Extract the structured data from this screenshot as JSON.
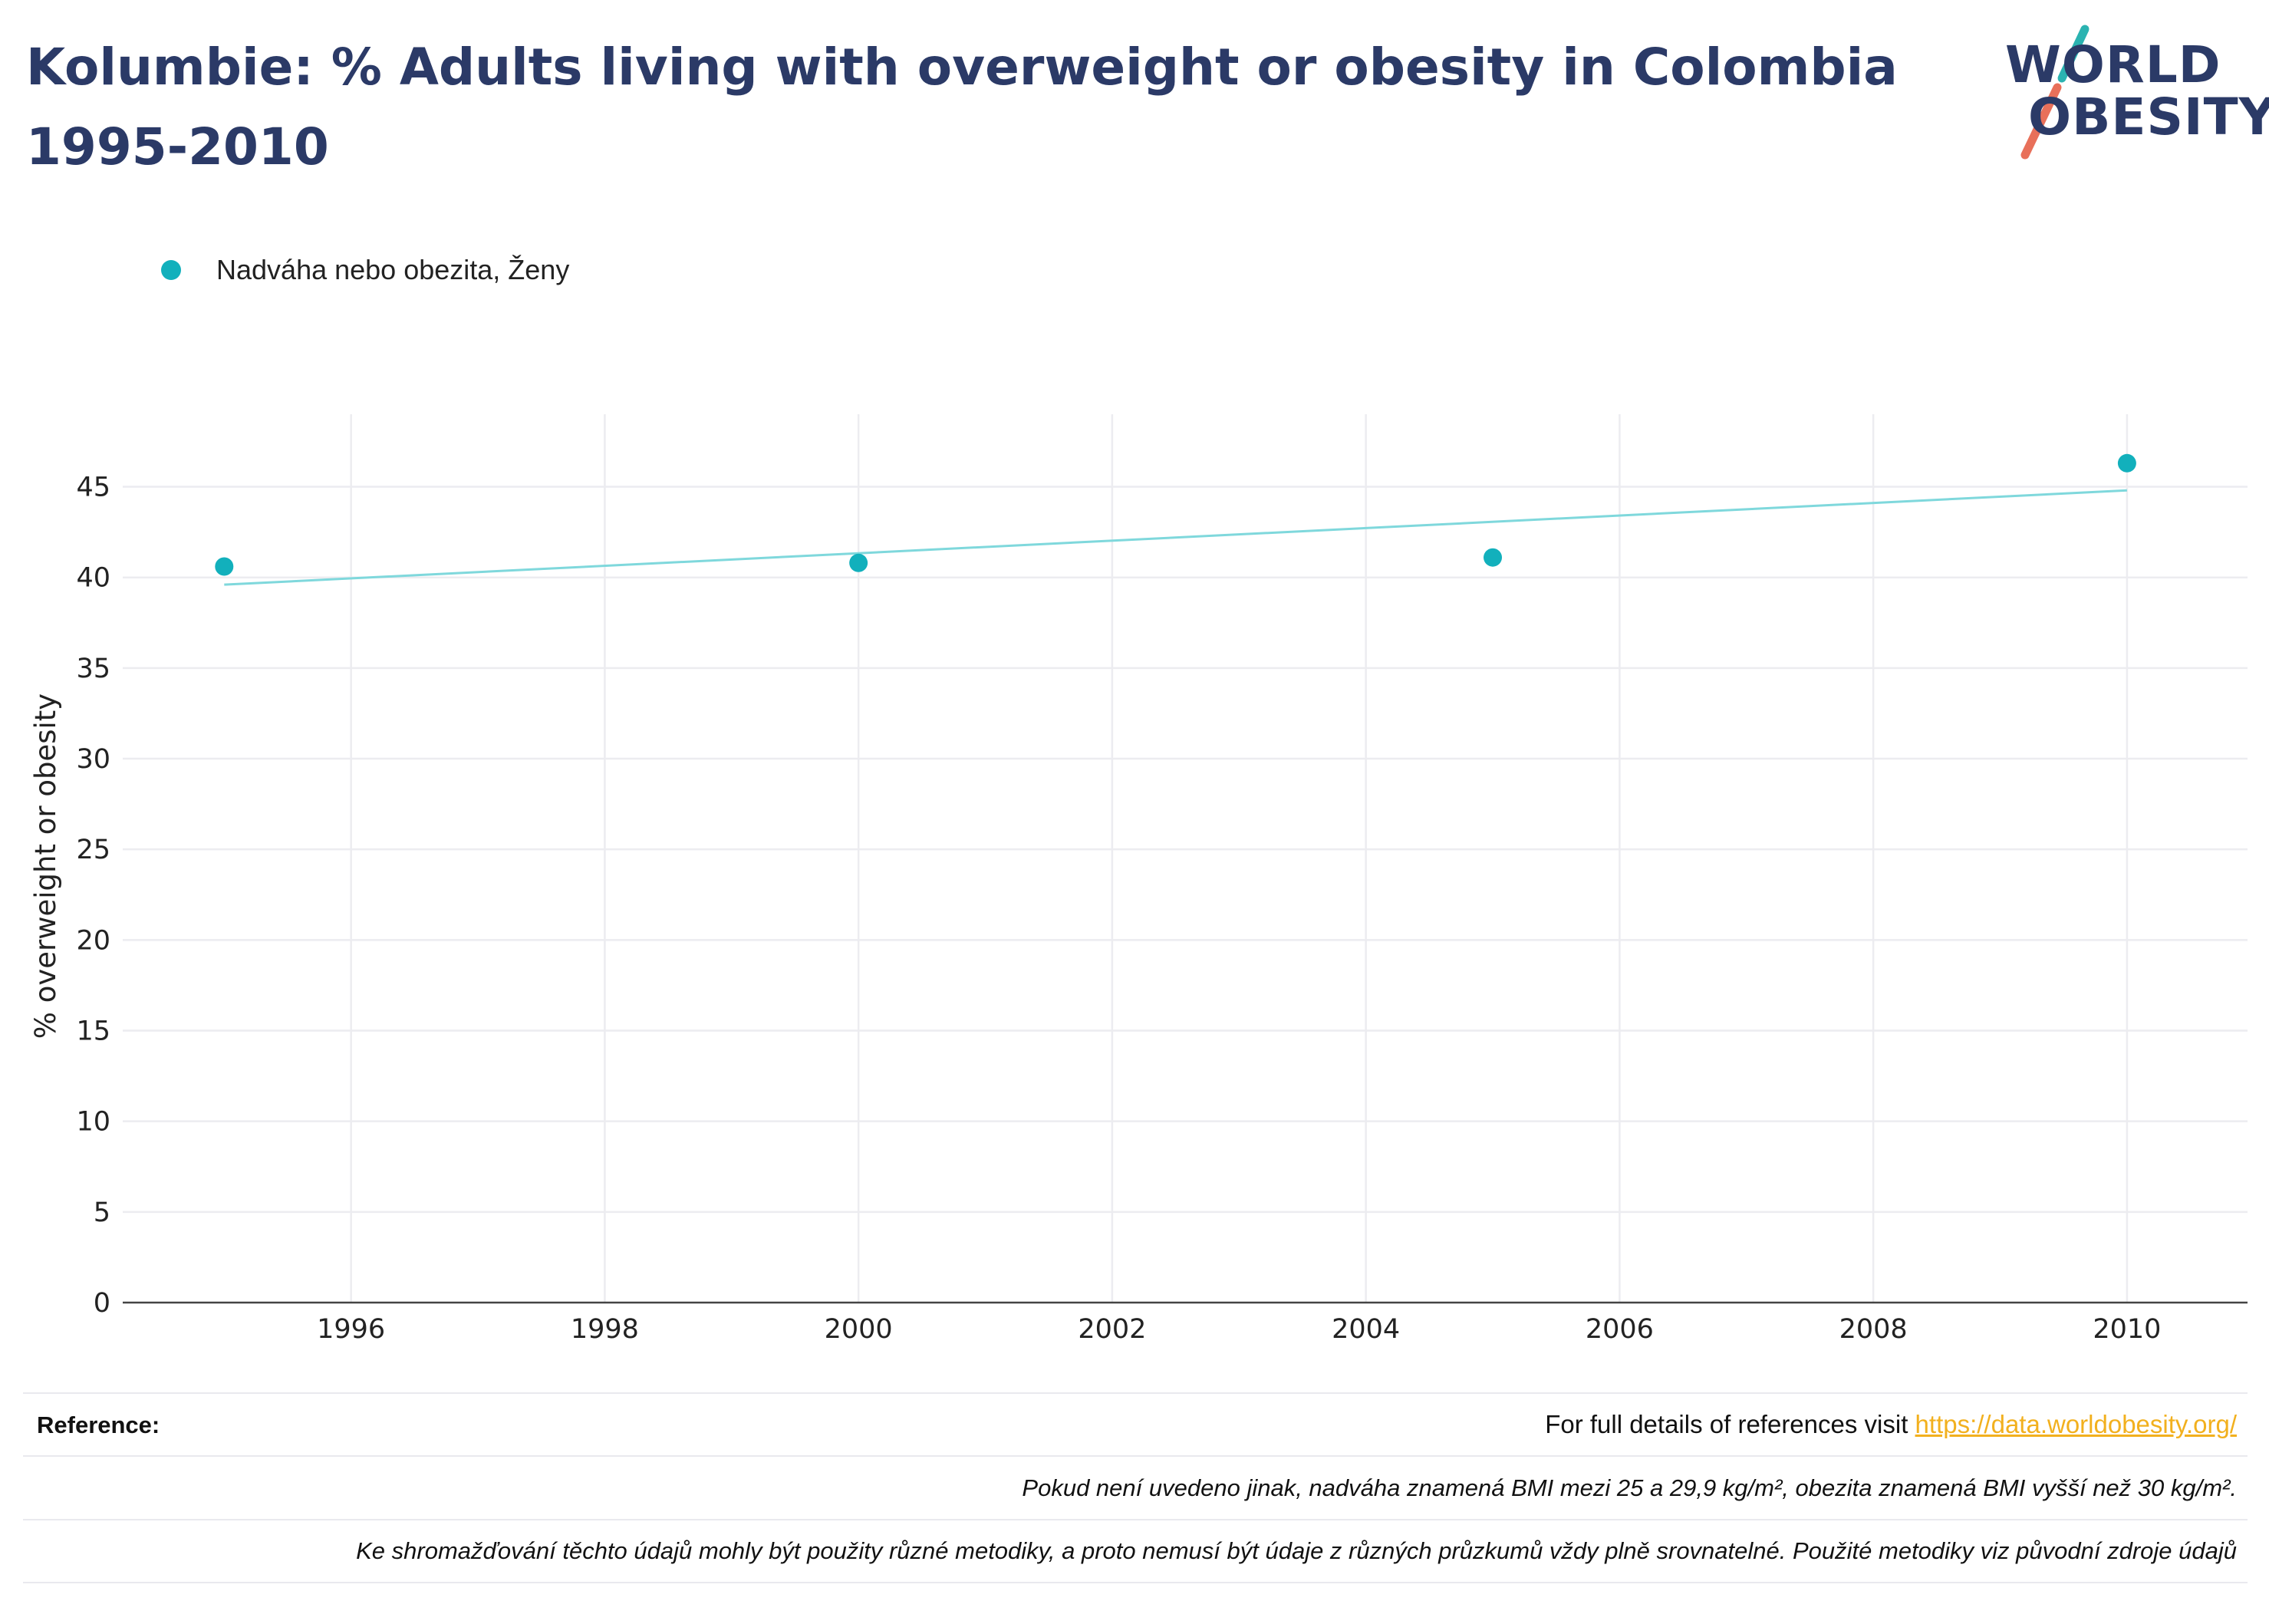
{
  "page": {
    "title": "Kolumbie: % Adults living with overweight or obesity in Colombia 1995-2010"
  },
  "logo": {
    "line1": "WORLD",
    "line2": "OBESITY",
    "text_color": "#2b3a67",
    "slash_top_color": "#2bb3b1",
    "slash_bottom_color": "#e8705a"
  },
  "legend": {
    "items": [
      {
        "label": "Nadváha nebo obezita, Ženy",
        "color": "#12b0bc"
      }
    ]
  },
  "chart_data": {
    "type": "scatter",
    "title": "Kolumbie: % Adults living with overweight or obesity in Colombia 1995-2010",
    "xlabel": "",
    "ylabel": "% overweight or obesity",
    "xlim": [
      1994.2,
      2010.95
    ],
    "ylim": [
      0,
      49
    ],
    "x_ticks": [
      1996,
      1998,
      2000,
      2002,
      2004,
      2006,
      2008,
      2010
    ],
    "y_ticks": [
      0,
      5,
      10,
      15,
      20,
      25,
      30,
      35,
      40,
      45
    ],
    "grid": true,
    "legend_position": "top-left",
    "series": [
      {
        "name": "Nadváha nebo obezita, Ženy",
        "color": "#12b0bc",
        "x": [
          1995,
          2000,
          2005,
          2010
        ],
        "y": [
          40.6,
          40.8,
          41.1,
          46.3
        ]
      }
    ],
    "trendline": {
      "color": "#7fd8dc",
      "x": [
        1995,
        2010
      ],
      "y": [
        39.6,
        44.8
      ]
    }
  },
  "footer": {
    "reference_label": "Reference:",
    "reference_text": "For full details of references visit ",
    "reference_link": "https://data.worldobesity.org/",
    "note1": "Pokud není uvedeno jinak, nadváha znamená BMI mezi 25 a 29,9 kg/m², obezita znamená BMI vyšší než 30 kg/m².",
    "note2": "Ke shromažďování těchto údajů mohly být použity různé metodiky, a proto nemusí být údaje z různých průzkumů vždy plně srovnatelné. Použité metodiky viz původní zdroje údajů"
  }
}
